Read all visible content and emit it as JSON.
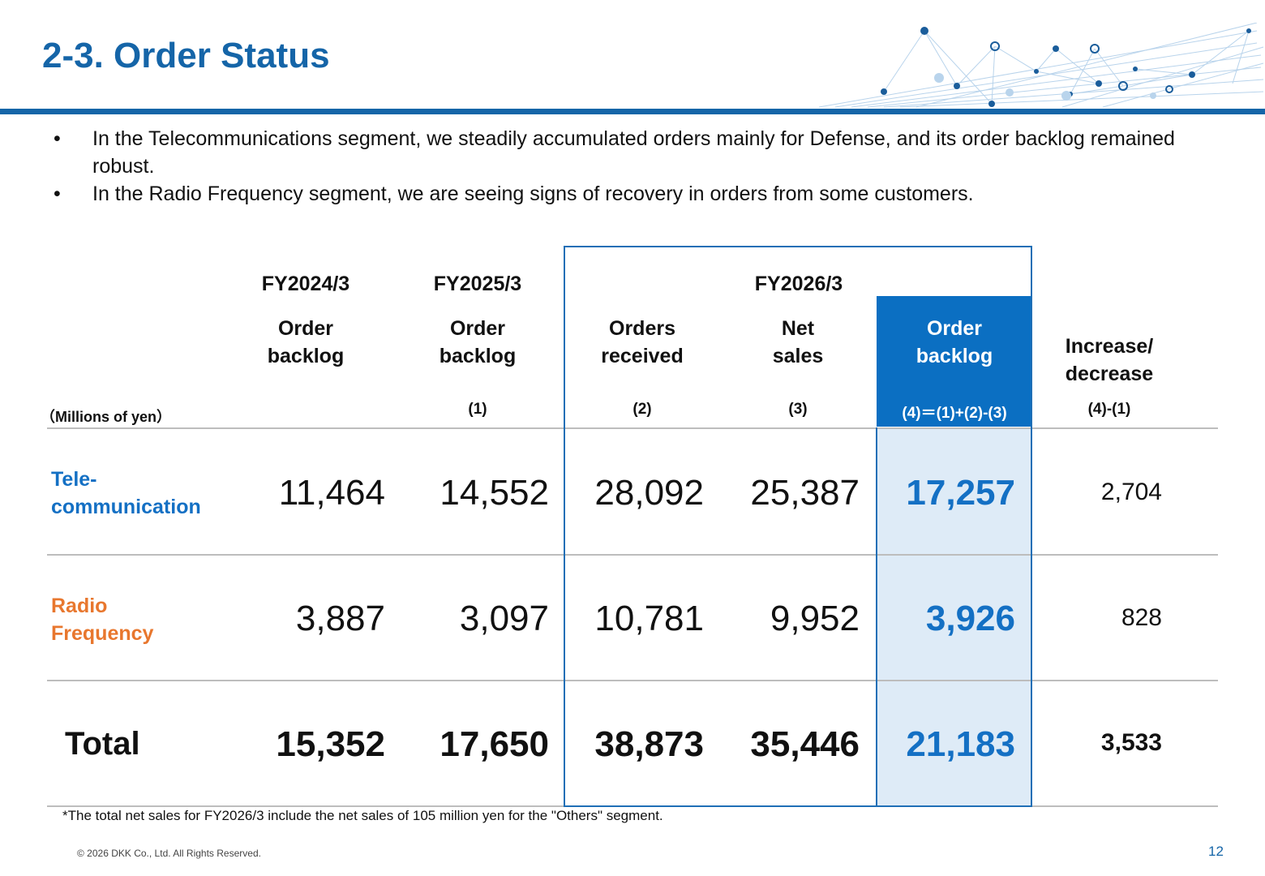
{
  "slide": {
    "title": "2-3. Order Status",
    "page_number": "12",
    "copyright": "© 2026 DKK Co., Ltd. All Rights Reserved.",
    "footnote": "*The total net sales for FY2026/3  include the net sales of 105 million yen for the \"Others\" segment.",
    "accent_color": "#1565a8"
  },
  "bullets": [
    "In the Telecommunications segment, we steadily accumulated orders mainly for Defense, and its order backlog remained robust.",
    "In the Radio Frequency segment, we are seeing signs of recovery in orders from some customers."
  ],
  "bullet_symbol": "•",
  "table": {
    "unit_label": "（Millions of yen）",
    "fiscal_years": {
      "fy2024": "FY2024/3",
      "fy2025": "FY2025/3",
      "fy2026": "FY2026/3"
    },
    "columns": [
      {
        "line1": "Order",
        "line2": "backlog",
        "sub": ""
      },
      {
        "line1": "Order",
        "line2": "backlog",
        "sub": "(1)"
      },
      {
        "line1": "Orders",
        "line2": "received",
        "sub": "(2)"
      },
      {
        "line1": "Net",
        "line2": "sales",
        "sub": "(3)"
      },
      {
        "line1": "Order",
        "line2": "backlog",
        "sub": "(4)＝(1)+(2)-(3)"
      },
      {
        "line1": "Increase/",
        "line2": "decrease",
        "sub": "(4)-(1)"
      }
    ],
    "rows": [
      {
        "label_line1": "Tele-",
        "label_line2": "communication",
        "label_color": "#1470c4",
        "values": [
          "11,464",
          "14,552",
          "28,092",
          "25,387",
          "17,257",
          "2,704"
        ]
      },
      {
        "label_line1": "Radio",
        "label_line2": "Frequency",
        "label_color": "#e8772e",
        "values": [
          "3,887",
          "3,097",
          "10,781",
          "9,952",
          "3,926",
          "828"
        ]
      },
      {
        "label": "Total",
        "values": [
          "15,352",
          "17,650",
          "38,873",
          "35,446",
          "21,183",
          "3,533"
        ]
      }
    ],
    "highlight_color": "#0b6fc2",
    "highlight_fill": "#deebf7"
  }
}
